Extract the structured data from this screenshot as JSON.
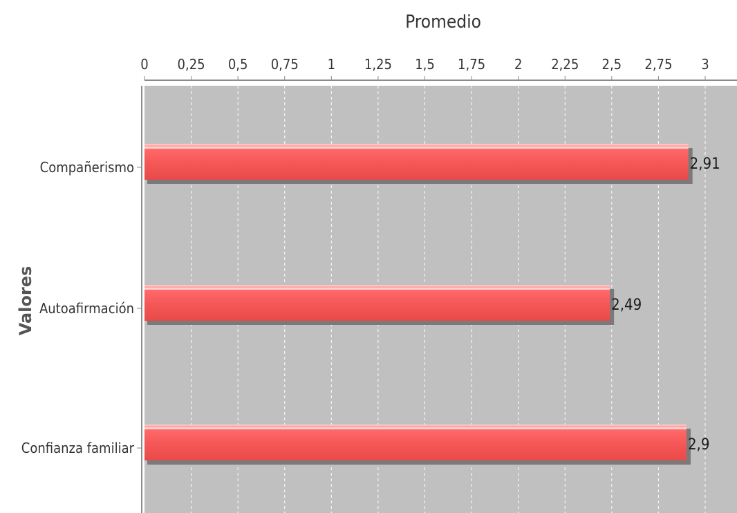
{
  "chart_data": {
    "type": "bar",
    "orientation": "horizontal",
    "categories": [
      "Compañerismo",
      "Autoafirmación",
      "Confianza familiar"
    ],
    "values": [
      2.91,
      2.49,
      2.9
    ],
    "value_labels": [
      "2,91",
      "2,49",
      "2,9"
    ],
    "xlabel": "Promedio",
    "ylabel": "Valores",
    "xlim": [
      0,
      3.15
    ],
    "x_ticks": [
      0,
      0.25,
      0.5,
      0.75,
      1,
      1.25,
      1.5,
      1.75,
      2,
      2.25,
      2.5,
      2.75,
      3
    ],
    "x_tick_labels": [
      "0",
      "0,25",
      "0,5",
      "0,75",
      "1",
      "1,25",
      "1,5",
      "1,75",
      "2",
      "2,25",
      "2,5",
      "2,75",
      "3"
    ],
    "x_axis_position": "top",
    "grid": true,
    "legend": "none",
    "colors": {
      "bar": "#f05a5a",
      "bar_highlight": "#ffd0d0",
      "bar_shadow": "#7a7a7a",
      "plot_background": "#c0c0c0",
      "gridline": "#ffffff"
    }
  }
}
